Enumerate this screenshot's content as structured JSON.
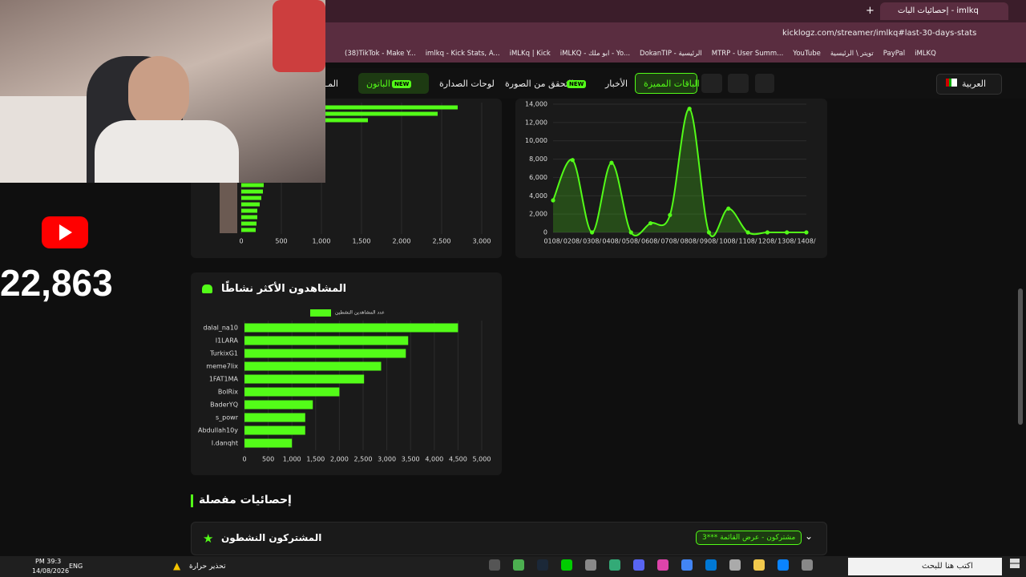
{
  "browser": {
    "tab_title": "إحصائيات البات - imlkq",
    "url": "kicklogz.com/streamer/imlkq#last-30-days-stats",
    "bookmarks": [
      "(38)TikTok - Make Y...",
      "imlkq - Kick Stats, A...",
      "iMLKq | Kick",
      "iMLKQ - ابو ملك - Yo...",
      "DokanTIP - الرئيسية",
      "MTRP - User Summ...",
      "YouTube",
      "تويتر \\ الرئيسية",
      "PayPal",
      "iMLKQ"
    ]
  },
  "nav": {
    "language": "العربية",
    "items": [
      {
        "label": "الباقات المميزة"
      },
      {
        "label": "الأخبار"
      },
      {
        "label": "التحقق من الصورة",
        "badge": "NEW"
      },
      {
        "label": "لوحات الصدارة"
      },
      {
        "label": "الباتون",
        "badge": "NEW"
      },
      {
        "label": "المـ"
      }
    ]
  },
  "stream_overlay": {
    "count": "22,863"
  },
  "chart_data": [
    {
      "type": "bar",
      "orientation": "horizontal",
      "categories": [
        null,
        null,
        null,
        null,
        null,
        null,
        null,
        null,
        null,
        null,
        null
      ],
      "values": [
        2700,
        2450,
        1580,
        280,
        270,
        250,
        230,
        200,
        200,
        190,
        180
      ],
      "color": "#53fc18",
      "xlim": [
        0,
        3000
      ],
      "xticks": [
        0,
        500,
        {
          "value": 1000,
          "label": "1,000"
        },
        {
          "value": 1500,
          "label": "1,500"
        },
        {
          "value": 2000,
          "label": "2,000"
        },
        {
          "value": 2500,
          "label": "2,500"
        },
        {
          "value": 3000,
          "label": "3,000"
        }
      ],
      "grid": true
    },
    {
      "type": "line",
      "categories": [
        "0108/",
        "0208/",
        "0308/",
        "0408/",
        "0508/",
        "0608/",
        "0708/",
        "0808/",
        "0908/",
        "1008/",
        "1108/",
        "1208/",
        "1308/",
        "1408/"
      ],
      "values": [
        3500,
        7900,
        0,
        7600,
        0,
        1000,
        1900,
        13500,
        0,
        2600,
        0,
        0,
        0,
        0
      ],
      "color": "#53fc18",
      "ylim": [
        0,
        14000
      ],
      "yticks": [
        0,
        {
          "value": 2000,
          "label": "2,000"
        },
        {
          "value": 4000,
          "label": "4,000"
        },
        {
          "value": 6000,
          "label": "6,000"
        },
        {
          "value": 8000,
          "label": "8,000"
        },
        {
          "value": 10000,
          "label": "10,000"
        },
        {
          "value": 12000,
          "label": "12,000"
        },
        {
          "value": 14000,
          "label": "14,000"
        }
      ],
      "grid": true
    },
    {
      "type": "bar",
      "orientation": "horizontal",
      "title": "المشاهدون الأكثر نشاطًا",
      "categories": [
        "dalal_na10",
        "I1LARA",
        "TurkixG1",
        "meme7lix",
        "1FAT1MA",
        "BolRix",
        "BaderYQ",
        "s_powr",
        "Abdullah10y",
        "I.danqht"
      ],
      "series": [
        {
          "name": "عدد المشاهدين النشطين",
          "color": "#53fc18",
          "values": [
            4500,
            3450,
            3400,
            2880,
            2520,
            2000,
            1440,
            1280,
            1280,
            1000
          ]
        }
      ],
      "xlim": [
        0,
        5000
      ],
      "xticks": [
        0,
        500,
        {
          "value": 1000,
          "label": "1,000"
        },
        {
          "value": 1500,
          "label": "1,500"
        },
        {
          "value": 2000,
          "label": "2,000"
        },
        {
          "value": 2500,
          "label": "2,500"
        },
        {
          "value": 3000,
          "label": "3,000"
        },
        {
          "value": 3500,
          "label": "3,500"
        },
        {
          "value": 4000,
          "label": "4,000"
        },
        {
          "value": 4500,
          "label": "4,500"
        },
        {
          "value": 5000,
          "label": "5,000"
        }
      ],
      "grid": true,
      "legend": "top"
    }
  ],
  "section_title": "إحصائيات مفصلة",
  "subscribers_card": {
    "title": "المشتركون النشطون",
    "button": "مشتركون - عرض القائمة ***3"
  },
  "taskbar": {
    "time": "PM 39:3",
    "date": "14/08/2026",
    "language": "ENG",
    "warning": "تحذير حرارة",
    "search": "اكتب هنا للبحث"
  }
}
